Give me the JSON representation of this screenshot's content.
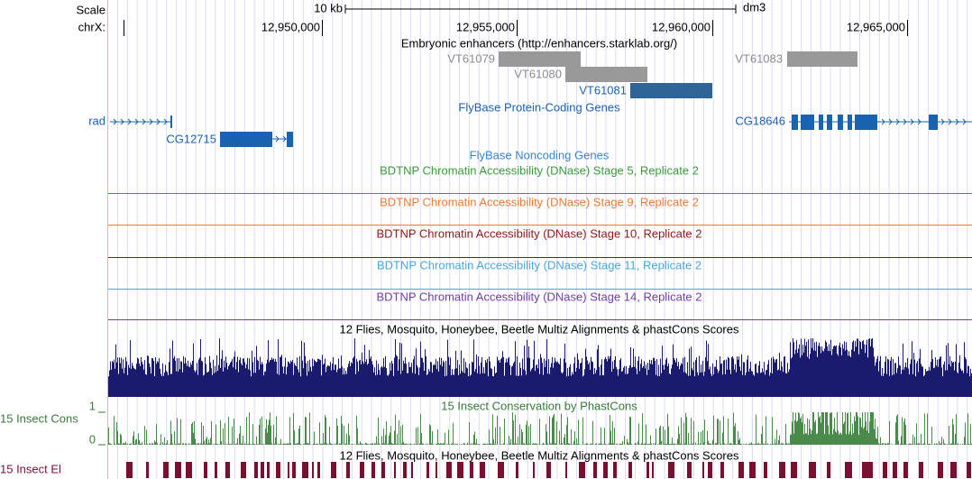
{
  "header": {
    "scale": "Scale",
    "bar": "10 kb",
    "assembly": "dm3",
    "chrom": "chrX:",
    "ticks": [
      "12,950,000",
      "12,955,000",
      "12,960,000",
      "12,965,000"
    ]
  },
  "tracks": [
    {
      "title": "Embryonic enhancers (http://enhancers.starklab.org/)",
      "features": [
        "VT61079",
        "VT61080",
        "VT61081",
        "VT61083"
      ]
    },
    {
      "title": "FlyBase Protein-Coding Genes",
      "features": [
        "rad",
        "CG12715",
        "CG18646"
      ]
    },
    {
      "title": "FlyBase Noncoding Genes"
    },
    {
      "title": "BDTNP Chromatin Accessibility (DNase) Stage 5, Replicate 2"
    },
    {
      "title": "BDTNP Chromatin Accessibility (DNase) Stage 9, Replicate 2"
    },
    {
      "title": "BDTNP Chromatin Accessibility (DNase) Stage 10, Replicate 2"
    },
    {
      "title": "BDTNP Chromatin Accessibility (DNase) Stage 11, Replicate 2"
    },
    {
      "title": "BDTNP Chromatin Accessibility (DNase) Stage 14, Replicate 2"
    },
    {
      "title": "12 Flies, Mosquito, Honeybee, Beetle Multiz Alignments & phastCons Scores"
    },
    {
      "title": "15 Insect Conservation by PhastCons",
      "label": "15 Insect Cons",
      "scale": [
        1,
        0
      ]
    },
    {
      "title": "12 Flies, Mosquito, Honeybee, Beetle Multiz Alignments & phastCons Scores",
      "label": "15 Insect El"
    }
  ]
}
